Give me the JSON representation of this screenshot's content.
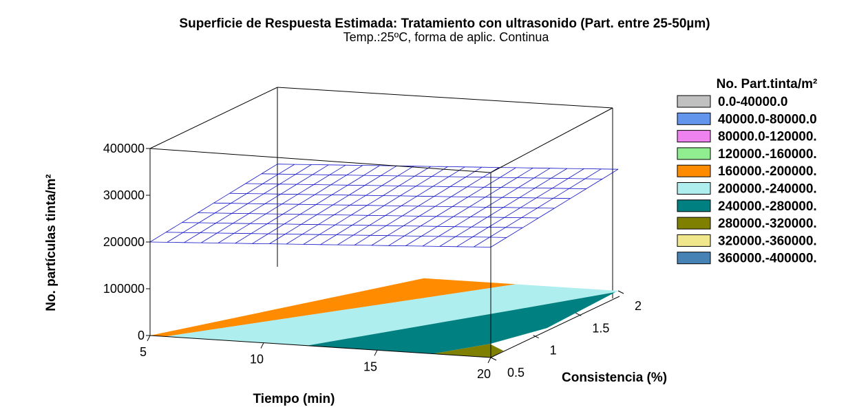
{
  "chart_data": {
    "type": "surface-3d",
    "title": "Superficie de Respuesta Estimada: Tratamiento con ultrasonido (Part. entre 25-50µm)",
    "subtitle": "Temp.:25ºC, forma de aplic. Continua",
    "xlabel": "Tiempo (min)",
    "ylabel": "Consistencia (%)",
    "zlabel": "No. partículas tinta/m²",
    "x_ticks": [
      "5",
      "10",
      "15",
      "20"
    ],
    "y_ticks": [
      "0.5",
      "1",
      "1.5",
      "2"
    ],
    "z_ticks": [
      "0",
      "100000",
      "200000",
      "300000",
      "400000"
    ],
    "xlim": [
      5,
      20
    ],
    "ylim": [
      0.5,
      2
    ],
    "zlim": [
      0,
      400000
    ],
    "surface_z_approx": 200000,
    "mesh_color": "#1010c8",
    "legend": {
      "title": "No. Part.tinta/m²",
      "placement": "right",
      "entries": [
        {
          "label": "0.0-40000.0",
          "color": "#c0c0c0"
        },
        {
          "label": "40000.0-80000.0",
          "color": "#6495ed"
        },
        {
          "label": "80000.0-120000.",
          "color": "#ee82ee"
        },
        {
          "label": "120000.-160000.",
          "color": "#90ee90"
        },
        {
          "label": "160000.-200000.",
          "color": "#ff8c00"
        },
        {
          "label": "200000.-240000.",
          "color": "#afeeee"
        },
        {
          "label": "240000.-280000.",
          "color": "#008080"
        },
        {
          "label": "280000.-320000.",
          "color": "#808000"
        },
        {
          "label": "320000.-360000.",
          "color": "#f0e68c"
        },
        {
          "label": "360000.-400000.",
          "color": "#4682b4"
        }
      ]
    }
  }
}
